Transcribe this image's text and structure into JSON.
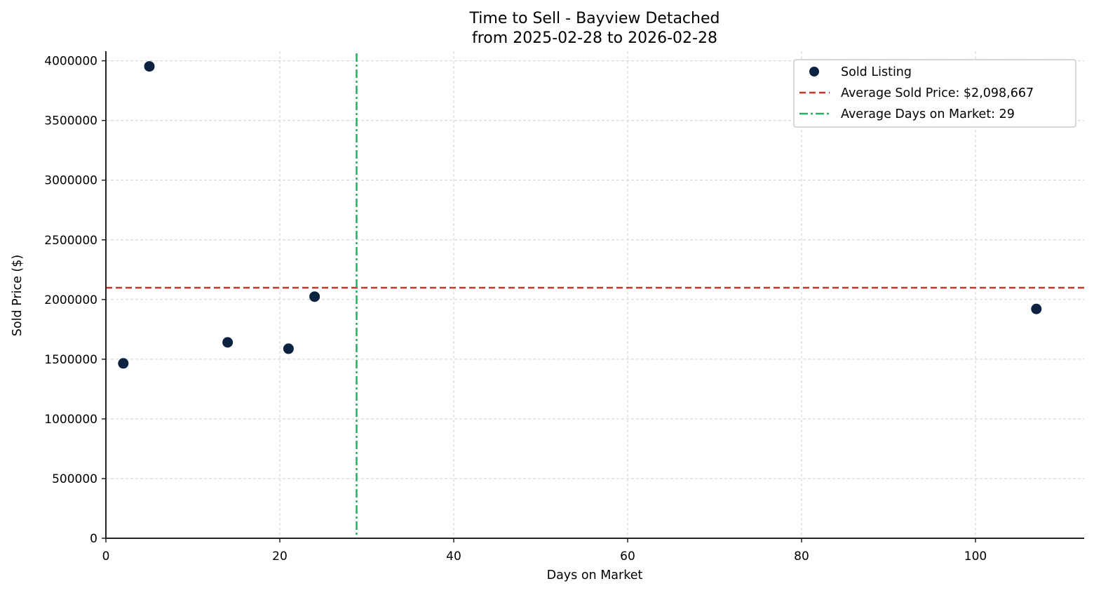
{
  "chart_data": {
    "type": "scatter",
    "title": "Time to Sell - Bayview Detached",
    "subtitle": "from 2025-02-28 to 2026-02-28",
    "xlabel": "Days on Market",
    "ylabel": "Sold Price ($)",
    "xlim": [
      0,
      112.5
    ],
    "ylim": [
      0,
      4080000
    ],
    "xticks": [
      0,
      20,
      40,
      60,
      80,
      100
    ],
    "xtick_labels": [
      "0",
      "20",
      "40",
      "60",
      "80",
      "100"
    ],
    "yticks": [
      0,
      500000,
      1000000,
      1500000,
      2000000,
      2500000,
      3000000,
      3500000,
      4000000
    ],
    "ytick_labels": [
      "0",
      "500000",
      "1000000",
      "1500000",
      "2000000",
      "2500000",
      "3000000",
      "3500000",
      "4000000"
    ],
    "grid": true,
    "legend_position": "upper right",
    "series": [
      {
        "name": "Sold Listing",
        "color": "#0b2240",
        "points": [
          {
            "x": 2,
            "y": 1465000
          },
          {
            "x": 5,
            "y": 3953000
          },
          {
            "x": 14,
            "y": 1641000
          },
          {
            "x": 21,
            "y": 1588000
          },
          {
            "x": 24,
            "y": 2024000
          },
          {
            "x": 107,
            "y": 1921000
          }
        ]
      }
    ],
    "reference_lines": [
      {
        "name": "Average Sold Price: $2,098,667",
        "orientation": "horizontal",
        "value": 2098667,
        "color": "#c0392b",
        "style": "dashed"
      },
      {
        "name": "Average Days on Market: 29",
        "orientation": "vertical",
        "value": 28.83,
        "color": "#27ae60",
        "style": "dashdot"
      }
    ]
  },
  "legend": {
    "items": [
      {
        "label": "Sold Listing"
      },
      {
        "label": "Average Sold Price: $2,098,667"
      },
      {
        "label": "Average Days on Market: 29"
      }
    ]
  }
}
